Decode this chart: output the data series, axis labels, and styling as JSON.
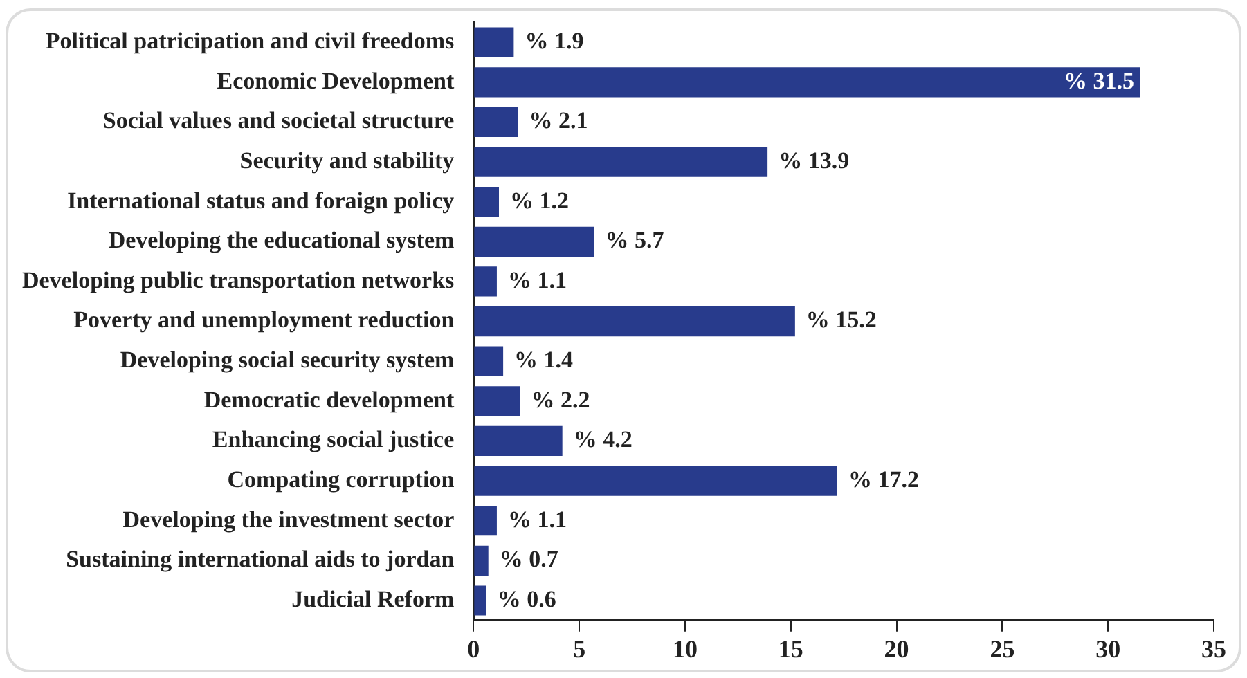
{
  "chart_data": {
    "type": "bar",
    "orientation": "horizontal",
    "categories": [
      "Political patricipation and civil freedoms",
      "Economic Development",
      "Social values and societal structure",
      "Security and stability",
      "International status and foraign policy",
      "Developing the educational system",
      "Developing public transportation networks",
      "Poverty and unemployment reduction",
      "Developing social security system",
      "Democratic development",
      "Enhancing social justice",
      "Compating corruption",
      "Developing the investment sector",
      "Sustaining international aids to jordan",
      "Judicial Reform"
    ],
    "values": [
      1.9,
      31.5,
      2.1,
      13.9,
      1.2,
      5.7,
      1.1,
      15.2,
      1.4,
      2.2,
      4.2,
      17.2,
      1.1,
      0.7,
      0.6
    ],
    "value_labels": [
      "% 1.9",
      "% 31.5",
      "% 2.1",
      "% 13.9",
      "% 1.2",
      "% 5.7",
      "% 1.1",
      "% 15.2",
      "% 1.4",
      "% 2.2",
      "% 4.2",
      "% 17.2",
      "% 1.1",
      "% 0.7",
      "% 0.6"
    ],
    "color": "#283b8c",
    "xlim": [
      0,
      35
    ],
    "xticks": [
      0,
      5,
      10,
      15,
      20,
      25,
      30,
      35
    ],
    "grid": false,
    "legend": false
  }
}
